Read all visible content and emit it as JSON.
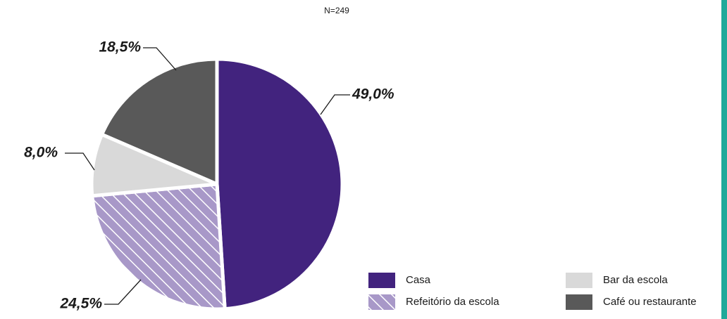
{
  "chart_data": {
    "type": "pie",
    "subtitle": "N=249",
    "categories": [
      "Casa",
      "Refeitório da escola",
      "Bar da escola",
      "Café ou restaurante"
    ],
    "values": [
      49.0,
      24.5,
      8.0,
      18.5
    ],
    "value_labels": [
      "49,0%",
      "24,5%",
      "8,0%",
      "18,5%"
    ],
    "colors": [
      "#42237e",
      "#a898c8",
      "#d9d9d9",
      "#595959"
    ],
    "hatch": [
      false,
      true,
      false,
      false
    ]
  }
}
